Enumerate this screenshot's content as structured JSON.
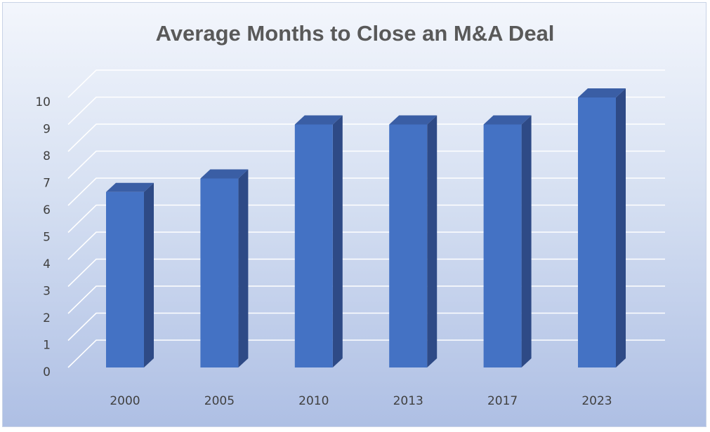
{
  "chart_data": {
    "type": "bar",
    "title": "Average Months to Close an M&A Deal",
    "xlabel": "",
    "ylabel": "",
    "categories": [
      "2000",
      "2005",
      "2010",
      "2013",
      "2017",
      "2023"
    ],
    "values": [
      6.5,
      7,
      9,
      9,
      9,
      10
    ],
    "ylim": [
      0,
      10
    ],
    "yticks": [
      "0",
      "1",
      "2",
      "3",
      "4",
      "5",
      "6",
      "7",
      "8",
      "9",
      "10"
    ],
    "grid": true,
    "legend": "none",
    "style": "3d-column",
    "colors": {
      "bar_front": "#4472c4",
      "bar_side": "#2e4a86",
      "bar_top": "#3a5ea5",
      "gridline": "#ffffff"
    }
  }
}
